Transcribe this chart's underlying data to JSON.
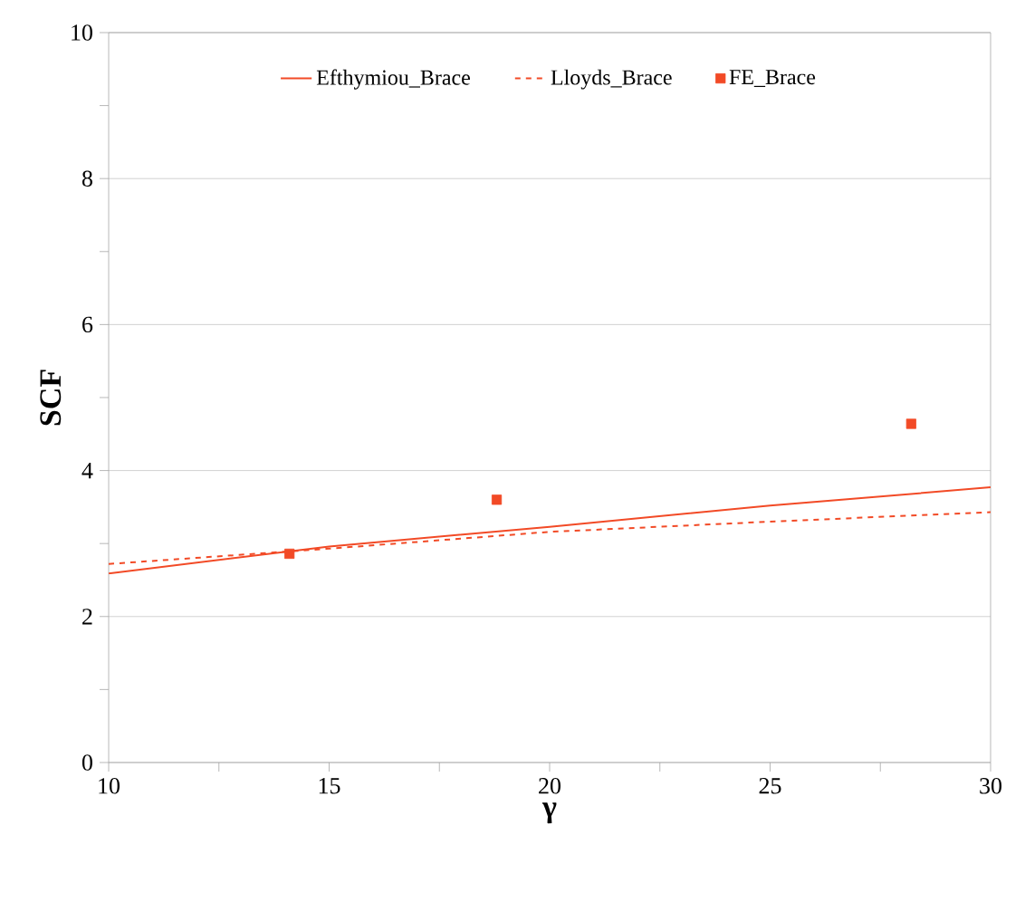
{
  "chart_data": {
    "type": "line",
    "xlabel": "γ",
    "ylabel": "SCF",
    "x": [
      10,
      15,
      20,
      25,
      30
    ],
    "series": [
      {
        "name": "Efthymiou_Brace",
        "color": "#f24a26",
        "line_style": "solid",
        "marker": "none",
        "values": [
          2.59,
          2.96,
          3.23,
          3.52,
          3.77
        ]
      },
      {
        "name": "Lloyds_Brace",
        "color": "#f24a26",
        "line_style": "dashed",
        "marker": "none",
        "values": [
          2.72,
          2.93,
          3.16,
          3.3,
          3.43
        ]
      },
      {
        "name": "FE_Brace",
        "type": "scatter",
        "color": "#f24a26",
        "marker": "square",
        "x": [
          14.1,
          18.8,
          28.2
        ],
        "values": [
          2.86,
          3.6,
          4.64
        ]
      }
    ],
    "xlim": [
      10,
      30
    ],
    "ylim": [
      0,
      10
    ],
    "xticks": [
      10,
      {
        "value": 12.5,
        "label": null
      },
      15,
      {
        "value": 17.5,
        "label": null
      },
      20,
      {
        "value": 22.5,
        "label": null
      },
      25,
      {
        "value": 27.5,
        "label": null
      },
      30
    ],
    "yticks": [
      0,
      {
        "value": 1,
        "label": null
      },
      2,
      {
        "value": 3,
        "label": null
      },
      4,
      {
        "value": 5,
        "label": null
      },
      6,
      {
        "value": 7,
        "label": null
      },
      8,
      {
        "value": 9,
        "label": null
      },
      10
    ],
    "grid": "y",
    "legend": "top"
  }
}
